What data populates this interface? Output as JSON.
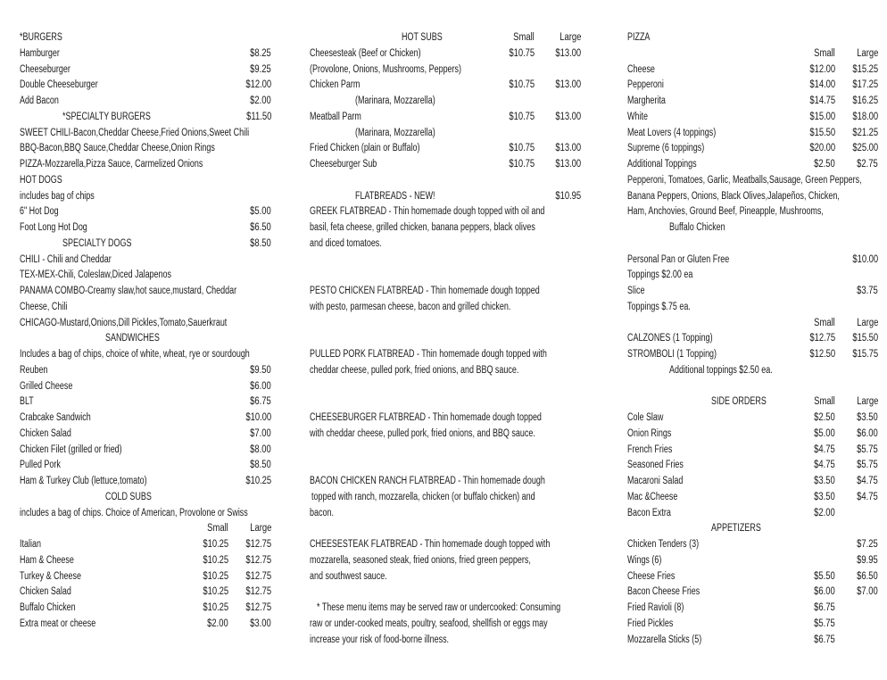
{
  "columns": [
    {
      "id": "col1",
      "rows": [
        {
          "t": "*BURGERS"
        },
        {
          "t": "Hamburger",
          "l": "$8.25"
        },
        {
          "t": "Cheeseburger",
          "l": "$9.25"
        },
        {
          "t": "Double Cheeseburger",
          "l": "$12.00"
        },
        {
          "t": "Add Bacon",
          "l": "$2.00"
        },
        {
          "t": "*SPECIALTY BURGERS",
          "l": "$11.50",
          "role": "subheading"
        },
        {
          "t": "SWEET CHILI-Bacon,Cheddar Cheese,Fried Onions,Sweet Chili"
        },
        {
          "t": "BBQ-Bacon,BBQ Sauce,Cheddar Cheese,Onion Rings"
        },
        {
          "t": "PIZZA-Mozzarella,Pizza Sauce, Carmelized Onions"
        },
        {
          "t": "HOT DOGS"
        },
        {
          "t": "includes bag of chips"
        },
        {
          "t": "6\" Hot Dog",
          "l": "$5.00"
        },
        {
          "t": "Foot Long Hot Dog",
          "l": "$6.50"
        },
        {
          "t": "SPECIALTY DOGS",
          "l": "$8.50",
          "role": "subheading"
        },
        {
          "t": "CHILI - Chili and  Cheddar"
        },
        {
          "t": "TEX-MEX-Chili, Coleslaw,Diced Jalapenos"
        },
        {
          "t": "PANAMA COMBO-Creamy slaw,hot sauce,mustard, Cheddar"
        },
        {
          "t": "Cheese, Chili"
        },
        {
          "t": "CHICAGO-Mustard,Onions,Dill Pickles,Tomato,Sauerkraut"
        },
        {
          "t": "SANDWICHES",
          "role": "section"
        },
        {
          "t": "Includes a bag of chips, choice of white, wheat, rye or sourdough"
        },
        {
          "t": "Reuben",
          "l": "$9.50"
        },
        {
          "t": "Grilled Cheese",
          "l": "$6.00"
        },
        {
          "t": "BLT",
          "l": "$6.75"
        },
        {
          "t": "Crabcake Sandwich",
          "l": "$10.00"
        },
        {
          "t": "Chicken Salad",
          "l": "$7.00"
        },
        {
          "t": "Chicken Filet (grilled or fried)",
          "l": "$8.00"
        },
        {
          "t": "Pulled Pork",
          "l": "$8.50"
        },
        {
          "t": "Ham & Turkey Club (lettuce,tomato)",
          "l": "$10.25"
        },
        {
          "t": "COLD SUBS",
          "role": "section"
        },
        {
          "t": "includes a bag of chips. Choice of American, Provolone or Swiss"
        },
        {
          "t": "",
          "s": "Small",
          "l": "Large",
          "role": "header"
        },
        {
          "t": "Italian",
          "s": "$10.25",
          "l": "$12.75"
        },
        {
          "t": "Ham & Cheese",
          "s": "$10.25",
          "l": "$12.75"
        },
        {
          "t": "Turkey & Cheese",
          "s": "$10.25",
          "l": "$12.75"
        },
        {
          "t": "Chicken Salad",
          "s": "$10.25",
          "l": "$12.75"
        },
        {
          "t": "Buffalo Chicken",
          "s": "$10.25",
          "l": "$12.75"
        },
        {
          "t": "Extra meat or cheese",
          "s": "$2.00",
          "l": "$3.00"
        }
      ]
    },
    {
      "id": "col2",
      "rows": [
        {
          "t": "HOT SUBS",
          "s": "Small",
          "l": "Large",
          "role": "section"
        },
        {
          "t": "Cheesesteak (Beef or Chicken)",
          "s": "$10.75",
          "l": "$13.00"
        },
        {
          "t": "(Provolone, Onions, Mushrooms, Peppers)"
        },
        {
          "t": "Chicken Parm",
          "s": "$10.75",
          "l": "$13.00"
        },
        {
          "t": "(Marinara, Mozzarella)",
          "role": "note"
        },
        {
          "t": "Meatball Parm",
          "s": "$10.75",
          "l": "$13.00"
        },
        {
          "t": "(Marinara, Mozzarella)",
          "role": "note"
        },
        {
          "t": "Fried Chicken (plain or Buffalo)",
          "s": "$10.75",
          "l": "$13.00"
        },
        {
          "t": "Cheeseburger Sub",
          "s": "$10.75",
          "l": "$13.00"
        },
        {
          "t": ""
        },
        {
          "t": "FLATBREADS - NEW!",
          "l": "$10.95",
          "role": "subheading"
        },
        {
          "t": "GREEK FLATBREAD - Thin homemade dough topped with oil and"
        },
        {
          "t": "basil, feta cheese, grilled chicken, banana peppers, black olives"
        },
        {
          "t": "and diced tomatoes."
        },
        {
          "t": ""
        },
        {
          "t": ""
        },
        {
          "t": "PESTO CHICKEN FLATBREAD - Thin homemade dough topped"
        },
        {
          "t": "with pesto, parmesan cheese, bacon and grilled chicken."
        },
        {
          "t": ""
        },
        {
          "t": ""
        },
        {
          "t": "PULLED PORK FLATBREAD - Thin homemade dough topped with"
        },
        {
          "t": "cheddar cheese, pulled pork, fried onions, and BBQ sauce."
        },
        {
          "t": ""
        },
        {
          "t": ""
        },
        {
          "t": "CHEESEBURGER FLATBREAD - Thin homemade dough topped"
        },
        {
          "t": "with cheddar cheese, pulled pork, fried onions, and BBQ sauce."
        },
        {
          "t": ""
        },
        {
          "t": ""
        },
        {
          "t": "BACON CHICKEN RANCH FLATBREAD - Thin homemade dough"
        },
        {
          "t": "topped with ranch, mozzarella, chicken (or buffalo chicken) and",
          "role": "shift"
        },
        {
          "t": "bacon."
        },
        {
          "t": ""
        },
        {
          "t": "CHEESESTEAK FLATBREAD - Thin homemade dough topped with"
        },
        {
          "t": "mozzarella, seasoned steak, fried onions, fried green peppers,"
        },
        {
          "t": "and southwest sauce."
        },
        {
          "t": ""
        },
        {
          "t": "* These menu items may be served raw or undercooked: Consuming",
          "role": "footnote"
        },
        {
          "t": "raw or under-cooked meats, poultry, seafood, shellfish or eggs may"
        },
        {
          "t": "increase your risk of food-borne illness."
        }
      ]
    },
    {
      "id": "col3",
      "rows": [
        {
          "t": "PIZZA"
        },
        {
          "t": "",
          "s": "Small",
          "l": "Large",
          "role": "header"
        },
        {
          "t": "Cheese",
          "s": "$12.00",
          "l": "$15.25"
        },
        {
          "t": "Pepperoni",
          "s": "$14.00",
          "l": "$17.25"
        },
        {
          "t": "Margherita",
          "s": "$14.75",
          "l": "$16.25"
        },
        {
          "t": "White",
          "s": "$15.00",
          "l": "$18.00"
        },
        {
          "t": "Meat Lovers (4 toppings)",
          "s": "$15.50",
          "l": "$21.25"
        },
        {
          "t": "Supreme (6 toppings)",
          "s": "$20.00",
          "l": "$25.00"
        },
        {
          "t": "Additional Toppings",
          "s": "$2.50",
          "l": "$2.75"
        },
        {
          "t": "Pepperoni, Tomatoes, Garlic, Meatballs,Sausage, Green Peppers,"
        },
        {
          "t": "Banana Peppers, Onions, Black Olives,Jalapeños, Chicken,"
        },
        {
          "t": "Ham, Anchovies, Ground Beef, Pineapple, Mushrooms,"
        },
        {
          "t": "Buffalo Chicken",
          "role": "note"
        },
        {
          "t": ""
        },
        {
          "t": "Personal Pan or Gluten Free",
          "l": "$10.00"
        },
        {
          "t": "Toppings $2.00 ea"
        },
        {
          "t": "Slice",
          "l": "$3.75"
        },
        {
          "t": "Toppings $.75 ea."
        },
        {
          "t": "",
          "s": "Small",
          "l": "Large",
          "role": "header"
        },
        {
          "t": "CALZONES (1 Topping)",
          "s": "$12.75",
          "l": "$15.50"
        },
        {
          "t": "STROMBOLI (1 Topping)",
          "s": "$12.50",
          "l": "$15.75"
        },
        {
          "t": "Additional toppings $2.50 ea.",
          "role": "note"
        },
        {
          "t": ""
        },
        {
          "t": "SIDE ORDERS",
          "s": "Small",
          "l": "Large",
          "role": "section"
        },
        {
          "t": "Cole Slaw",
          "s": "$2.50",
          "l": "$3.50"
        },
        {
          "t": "Onion Rings",
          "s": "$5.00",
          "l": "$6.00"
        },
        {
          "t": "French Fries",
          "s": "$4.75",
          "l": "$5.75"
        },
        {
          "t": "Seasoned Fries",
          "s": "$4.75",
          "l": "$5.75"
        },
        {
          "t": "Macaroni Salad",
          "s": "$3.50",
          "l": "$4.75"
        },
        {
          "t": "Mac &Cheese",
          "s": "$3.50",
          "l": "$4.75"
        },
        {
          "t": "Bacon Extra",
          "s": "$2.00"
        },
        {
          "t": "APPETIZERS",
          "role": "section"
        },
        {
          "t": "Chicken Tenders (3)",
          "l": "$7.25"
        },
        {
          "t": "Wings (6)",
          "l": "$9.95"
        },
        {
          "t": "Cheese Fries",
          "s": "$5.50",
          "l": "$6.50"
        },
        {
          "t": "Bacon Cheese Fries",
          "s": "$6.00",
          "l": "$7.00"
        },
        {
          "t": "Fried Ravioli (8)",
          "s": "$6.75"
        },
        {
          "t": "Fried Pickles",
          "s": "$5.75"
        },
        {
          "t": "Mozzarella Sticks (5)",
          "s": "$6.75"
        }
      ]
    }
  ]
}
